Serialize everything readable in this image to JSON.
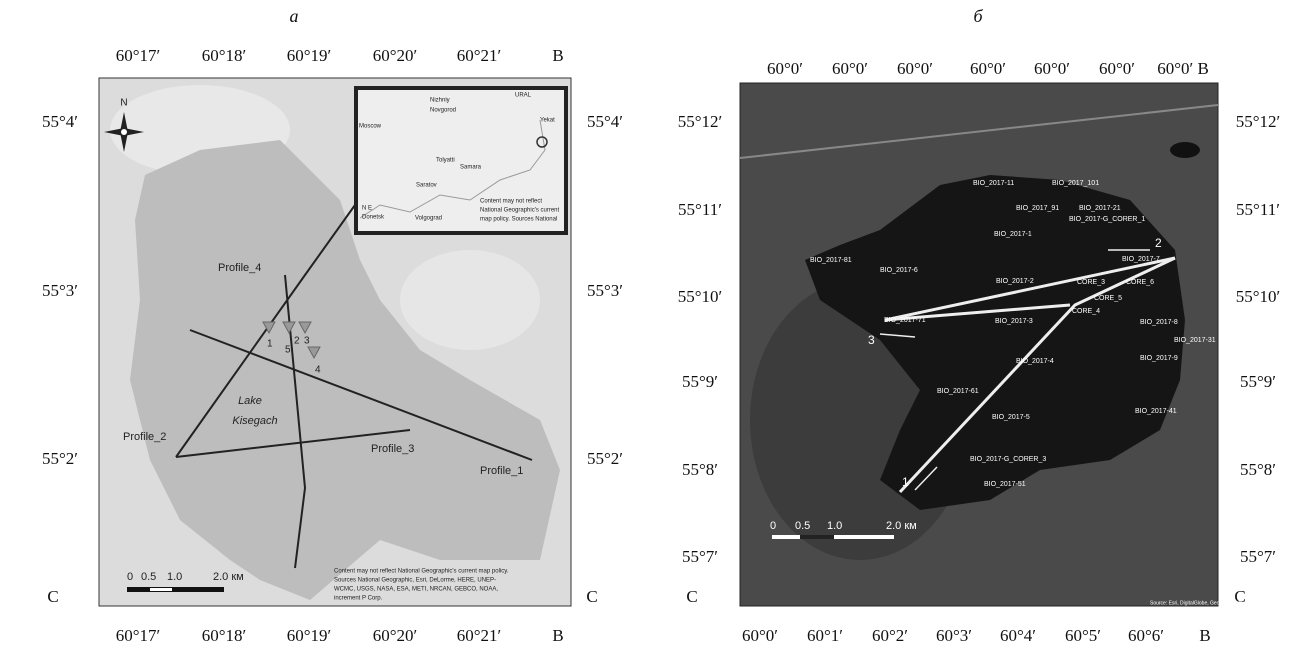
{
  "panels": [
    {
      "title": "а",
      "top_ticks": [
        "60°17′",
        "60°18′",
        "60°19′",
        "60°20′",
        "60°21′",
        "В"
      ],
      "bottom_ticks": [
        "60°17′",
        "60°18′",
        "60°19′",
        "60°20′",
        "60°21′",
        "В"
      ],
      "left_ticks": [
        "55°4′",
        "55°3′",
        "55°2′"
      ],
      "right_ticks": [
        "55°4′",
        "55°3′",
        "55°2′"
      ],
      "corner": "С",
      "labels": [
        "N",
        "Profile_4",
        "Profile_2",
        "Profile_3",
        "Profile_1",
        "Lake",
        "Kisegach",
        "1",
        "5",
        "2",
        "3",
        "4",
        "0",
        "0.5",
        "1.0",
        "2.0 км",
        "Moscow",
        "Nizhniy",
        "Novgorod",
        "Tolyatti",
        "Samara",
        "Saratov",
        "Yekat",
        "URAL",
        "N E",
        "Donetsk",
        "Volgograd",
        "Content may not reflect",
        "National Geographic's current",
        "map policy. Sources National",
        "Content may not reflect National Geographic's current map policy.",
        "Sources National Geographic, Esri, DeLorme, HERE, UNEP-",
        "WCMC, USGS, NASA, ESA, METI, NRCAN, GEBCO, NOAA,",
        "increment P Corp."
      ]
    },
    {
      "title": "б",
      "top_ticks": [
        "60°0′",
        "60°0′",
        "60°0′",
        "60°0′",
        "60°0′",
        "60°0′",
        "60°0′ В"
      ],
      "bottom_ticks": [
        "60°0′",
        "60°1′",
        "60°2′",
        "60°3′",
        "60°4′",
        "60°5′",
        "60°6′",
        "В"
      ],
      "left_ticks": [
        "55°12′",
        "55°11′",
        "55°10′",
        "55°9′",
        "55°8′",
        "55°7′"
      ],
      "right_ticks": [
        "55°12′",
        "55°11′",
        "55°10′",
        "55°9′",
        "55°8′",
        "55°7′"
      ],
      "corner": "С",
      "labels": [
        "BIO_2017-11",
        "BIO_2017_101",
        "BIO_2017_91",
        "BIO_2017-21",
        "BIO_2017-G_CORER_1",
        "BIO_2017-1",
        "BIO_2017-81",
        "BIO_2017-6",
        "BIO_2017-2",
        "BIO_2017-7",
        "CORE_3",
        "CORE_6",
        "CORE_5",
        "CORE_4",
        "BIO_2017-71",
        "BIO_2017-3",
        "BIO_2017-8",
        "BIO_2017-31",
        "BIO_2017-4",
        "BIO_2017-9",
        "BIO_2017-61",
        "BIO_2017-5",
        "BIO_2017-41",
        "BIO_2017-G_CORER_3",
        "BIO_2017-51",
        "2",
        "3",
        "1",
        "0",
        "0.5",
        "1.0",
        "2.0 км",
        "Source: Esri, DigitalGlobe, GeoEye, Earthstar Geographics"
      ]
    }
  ]
}
